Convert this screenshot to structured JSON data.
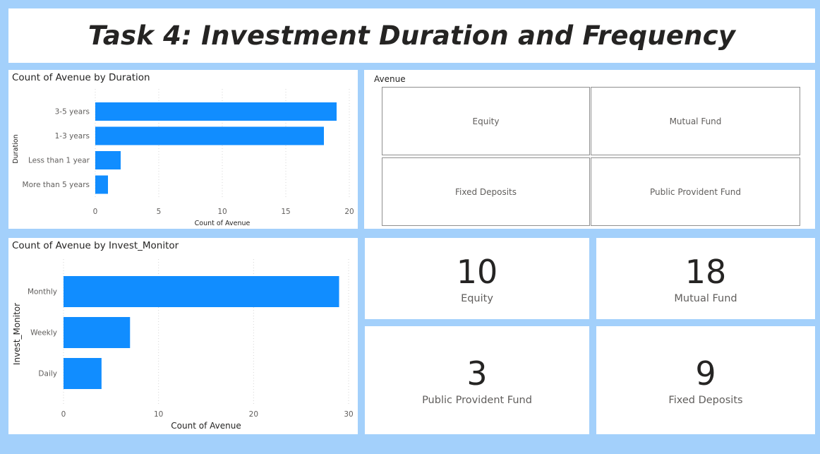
{
  "page": {
    "title": "Task 4: Investment Duration and Frequency"
  },
  "colors": {
    "background": "#a3d0fb",
    "bar": "#118dff",
    "panel": "#ffffff"
  },
  "chart_data": [
    {
      "type": "bar",
      "orientation": "horizontal",
      "title": "Count of Avenue by Duration",
      "xlabel": "Count of Avenue",
      "ylabel": "Duration",
      "categories": [
        "3-5 years",
        "1-3 years",
        "Less than 1 year",
        "More than 5 years"
      ],
      "values": [
        19,
        18,
        2,
        1
      ],
      "xticks": [
        "0",
        "5",
        "10",
        "15",
        "20"
      ],
      "xlim": [
        0,
        20
      ],
      "grid": "vertical dotted"
    },
    {
      "type": "bar",
      "orientation": "horizontal",
      "title": "Count of Avenue by Invest_Monitor",
      "xlabel": "Count of Avenue",
      "ylabel": "Invest_Monitor",
      "categories": [
        "Monthly",
        "Weekly",
        "Daily"
      ],
      "values": [
        29,
        7,
        4
      ],
      "xticks": [
        "0",
        "10",
        "20",
        "30"
      ],
      "xlim": [
        0,
        30
      ],
      "grid": "vertical dotted"
    }
  ],
  "slicer": {
    "title": "Avenue",
    "options": [
      "Equity",
      "Mutual Fund",
      "Fixed Deposits",
      "Public Provident Fund"
    ]
  },
  "cards": [
    {
      "value": "10",
      "label": "Equity"
    },
    {
      "value": "18",
      "label": "Mutual Fund"
    },
    {
      "value": "3",
      "label": "Public Provident Fund"
    },
    {
      "value": "9",
      "label": "Fixed Deposits"
    }
  ]
}
